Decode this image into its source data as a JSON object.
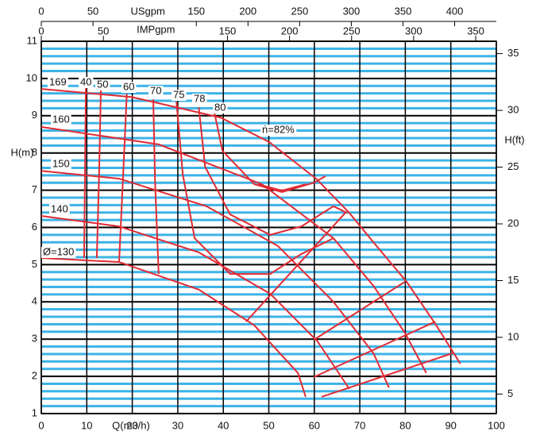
{
  "chart_data": {
    "type": "line",
    "xlabel": "Q(m3/h)",
    "ylabel": "H(m)",
    "y2label": "H(ft)",
    "x2label": "USgpm",
    "x3label": "IMPgpm",
    "xlim": [
      0,
      100
    ],
    "xticks": [
      0,
      10,
      20,
      30,
      40,
      50,
      60,
      70,
      80,
      90,
      100
    ],
    "ylim": [
      1,
      11
    ],
    "yticks": [
      1,
      2,
      3,
      4,
      5,
      6,
      7,
      8,
      9,
      10,
      11
    ],
    "y2lim": [
      3.281,
      36.089
    ],
    "y2ticks": [
      5,
      10,
      15,
      20,
      25,
      30,
      35
    ],
    "x2lim": [
      0,
      440.3
    ],
    "x2ticks": [
      0,
      50,
      150,
      200,
      250,
      300,
      350,
      400
    ],
    "x3lim": [
      0,
      366.6
    ],
    "x3ticks": [
      0,
      50,
      150,
      200,
      250,
      300,
      350
    ],
    "grid": true,
    "grid_color": "#000000",
    "minor_grid_color": "#3db3e6",
    "color": "#e02b35",
    "series": [
      {
        "name": "169",
        "x": [
          0,
          20,
          39.4,
          50,
          60.4,
          67.7,
          73,
          80.3,
          86.6,
          92.1
        ],
        "y": [
          9.72,
          9.5,
          8.95,
          8.3,
          7.31,
          6.39,
          5.6,
          4.54,
          3.41,
          2.34
        ]
      },
      {
        "name": "160",
        "x": [
          0,
          25.8,
          48.5,
          64.2,
          73,
          80,
          84.6
        ],
        "y": [
          8.7,
          8.23,
          7.16,
          5.71,
          4.43,
          3.15,
          2.09
        ]
      },
      {
        "name": "150",
        "x": [
          0,
          17.1,
          36.3,
          52,
          64.2,
          73,
          76.4
        ],
        "y": [
          7.52,
          7.31,
          6.57,
          5.5,
          4.0,
          2.62,
          1.7
        ]
      },
      {
        "name": "140",
        "x": [
          0,
          17,
          34.6,
          50.3,
          60.7,
          67.7
        ],
        "y": [
          6.31,
          6.03,
          5.33,
          4.22,
          2.94,
          1.66
        ]
      },
      {
        "name": "Ø=130",
        "x": [
          0,
          17.1,
          34.6,
          46.8,
          56.4,
          58.1
        ],
        "y": [
          5.18,
          5.07,
          4.33,
          3.37,
          2.09,
          1.45
        ]
      },
      {
        "name": "40",
        "x": [
          9.8,
          9.4
        ],
        "y": [
          9.87,
          5.18
        ]
      },
      {
        "name": "50",
        "x": [
          13.1,
          12.7,
          12.2
        ],
        "y": [
          9.76,
          7.42,
          5.18
        ]
      },
      {
        "name": "60",
        "x": [
          18.8,
          18.0,
          17.1
        ],
        "y": [
          9.59,
          7.42,
          5.07
        ]
      },
      {
        "name": "70",
        "x": [
          24.6,
          25.0,
          25.8
        ],
        "y": [
          9.44,
          7.2,
          4.75
        ]
      },
      {
        "name": "75",
        "x": [
          29.7,
          31.1,
          33.7,
          41.5,
          50.3,
          57.2,
          64.2
        ],
        "y": [
          9.38,
          7.42,
          5.71,
          4.75,
          4.75,
          5.29,
          5.71
        ]
      },
      {
        "name": "78",
        "x": [
          34.6,
          36.0,
          41.5,
          50.3,
          57.2,
          64.2,
          67.2
        ],
        "y": [
          9.23,
          7.63,
          6.35,
          5.8,
          6.03,
          6.57,
          6.39
        ]
      },
      {
        "name": "80",
        "x": [
          38.0,
          39.8,
          46.8,
          52.9,
          59.9,
          62.5
        ],
        "y": [
          9.12,
          8.06,
          7.16,
          6.95,
          7.2,
          7.38
        ]
      },
      {
        "name": "ṅ=82%",
        "x": [
          47.6,
          52.9,
          58.1
        ],
        "y": [
          7.16,
          6.99,
          7.16
        ]
      }
    ],
    "lines": [
      {
        "x": [
          45,
          66.8
        ],
        "y": [
          3.47,
          6.39
        ]
      },
      {
        "x": [
          59.9,
          79.9
        ],
        "y": [
          2.98,
          4.54
        ]
      },
      {
        "x": [
          59.9,
          86.6
        ],
        "y": [
          1.98,
          3.47
        ]
      },
      {
        "x": [
          61.6,
          90.4
        ],
        "y": [
          1.45,
          2.62
        ]
      }
    ]
  }
}
